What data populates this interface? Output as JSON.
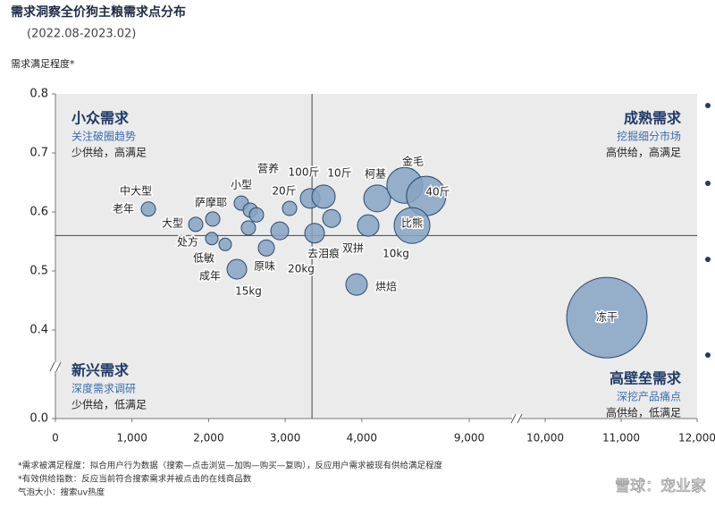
{
  "chart_data": {
    "type": "bubble",
    "title": "需求洞察全价狗主粮需求点分布",
    "subtitle": "(2022.08-2023.02)",
    "y_label": "需求满足程度*",
    "xlim": [
      0,
      12000
    ],
    "ylim": [
      0,
      0.8
    ],
    "xticks": [
      0,
      {
        "value": 1000,
        "label": "1,000"
      },
      {
        "value": 2000,
        "label": "2,000"
      },
      {
        "value": 3000,
        "label": "3,000"
      },
      {
        "value": 4000,
        "label": "4,000"
      },
      {
        "value": 9000,
        "label": "9,000"
      },
      {
        "value": 10000,
        "label": "10,000"
      },
      {
        "value": 11000,
        "label": "11,000"
      },
      {
        "value": 12000,
        "label": "12,000"
      }
    ],
    "yticks": [
      {
        "value": 0,
        "label": "0.0"
      },
      0.4,
      0.5,
      0.6,
      0.7,
      0.8
    ],
    "quadrant_lines": {
      "x": 3350,
      "y": 0.56
    },
    "color": "#86a3c3",
    "points": {
      "names": [
        "中大型",
        "老年",
        "大型",
        "萨摩耶",
        "小型",
        "处方",
        "低敏",
        "成年",
        "15kg",
        "营养",
        "20斤",
        "原味",
        "20kg",
        "100斤",
        "10斤",
        "去泪痕",
        "双拼",
        "10kg",
        "柯基",
        "烘焙",
        "金毛",
        "40斤",
        "比熊",
        "冻干"
      ],
      "x": [
        1214,
        1832,
        2054,
        2427,
        2544,
        2042,
        2217,
        2520,
        2369,
        2625,
        3057,
        2754,
        2929,
        3326,
        3501,
        3384,
        3606,
        4084,
        4201,
        3932,
        4560,
        4840,
        4656,
        10812
      ],
      "y": [
        0.605,
        0.579,
        0.588,
        0.615,
        0.603,
        0.555,
        0.545,
        0.573,
        0.503,
        0.595,
        0.606,
        0.539,
        0.568,
        0.623,
        0.626,
        0.564,
        0.589,
        0.577,
        0.623,
        0.477,
        0.645,
        0.627,
        0.577,
        0.421
      ],
      "size": [
        8,
        8,
        8,
        8,
        8,
        7,
        7,
        8,
        11,
        8,
        8,
        9,
        10,
        11,
        13,
        11,
        10,
        12,
        15,
        12,
        20,
        22,
        20,
        45
      ]
    },
    "quadrants": [
      {
        "title": "小众需求",
        "subtitle": "关注破圈趋势",
        "desc": "少供给，高满足"
      },
      {
        "title": "成熟需求",
        "subtitle": "挖掘细分市场",
        "desc": "高供给，高满足"
      },
      {
        "title": "新兴需求",
        "subtitle": "深度需求调研",
        "desc": "少供给，低满足"
      },
      {
        "title": "高壁垒需求",
        "subtitle": "深挖产品痛点",
        "desc": "高供给，低满足"
      }
    ],
    "footnotes": [
      "*需求被满足程度：拟合用户行为数据（搜索—点击浏览—加购—购买—复购），反应用户需求被现有供给满足程度",
      "*有效供给指数：反应当前符合搜索需求并被点击的在线商品数",
      "气泡大小：搜索uv热度"
    ],
    "watermark": "雪球：宠业家"
  }
}
